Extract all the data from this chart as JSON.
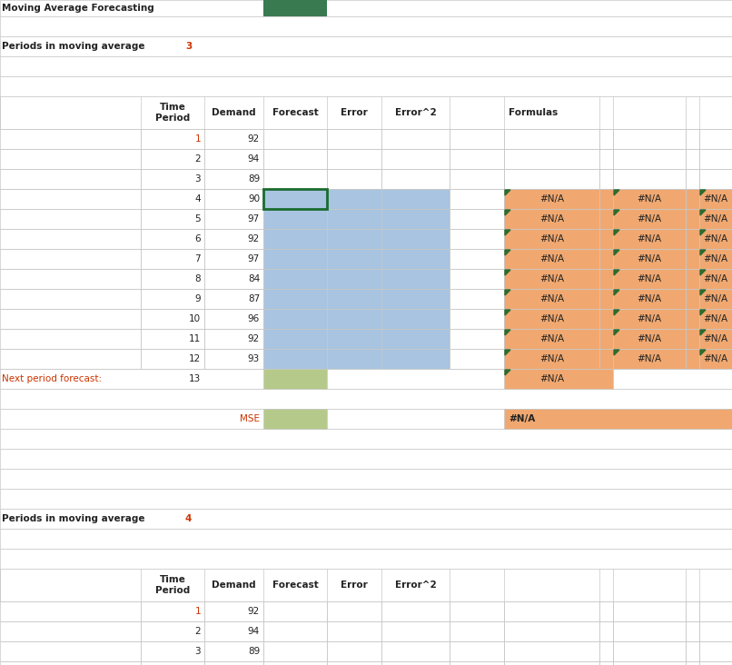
{
  "section1_value": "3",
  "section2_value": "4",
  "demands": [
    92,
    94,
    89,
    90,
    97,
    92,
    97,
    84,
    87,
    96,
    92,
    93
  ],
  "na_label": "#N/A",
  "mse_label": "MSE",
  "next_period_label": "Next period forecast:",
  "next_period_num": "13",
  "formulas_label": "Formulas",
  "color_blue": "#a8c4e0",
  "color_orange": "#f0a870",
  "color_green": "#b5ca8a",
  "color_white": "#ffffff",
  "color_grid": "#c8c8c8",
  "color_red_text": "#cc3300",
  "color_dark": "#222222",
  "color_top_green": "#3a7a50",
  "color_green_tri": "#2d6a30",
  "color_green_border": "#1a6b2e",
  "font_size": 7.5
}
